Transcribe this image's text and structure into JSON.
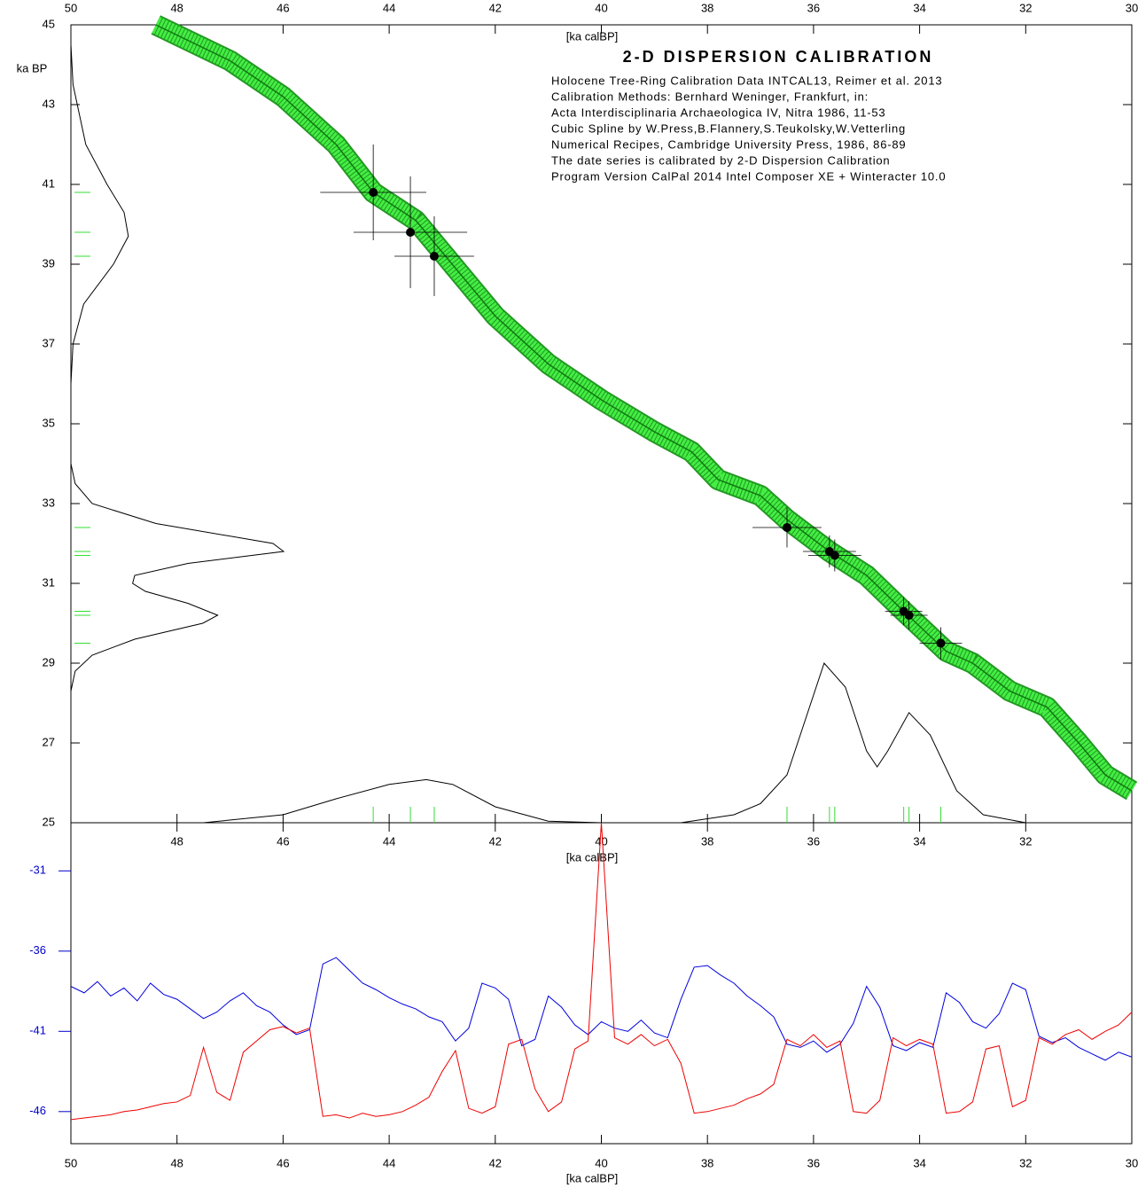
{
  "chart_data": [
    {
      "type": "calibration",
      "title": "2-D DISPERSION CALIBRATION",
      "x_label": "[ka calBP]",
      "y_label": "ka BP",
      "notes": [
        "Holocene Tree-Ring Calibration Data INTCAL13, Reimer et al. 2013",
        "Calibration Methods:  Bernhard Weninger, Frankfurt, in:",
        "Acta Interdisciplinaria Archaeologica IV, Nitra 1986, 11-53",
        "Cubic Spline by W.Press,B.Flannery,S.Teukolsky,W.Vetterling",
        "Numerical Recipes, Cambridge University Press, 1986, 86-89",
        "The date series is calibrated by 2-D Dispersion Calibration",
        "Program Version CalPal 2014 Intel Composer XE + Winteracter 10.0"
      ],
      "xlim": [
        50,
        30
      ],
      "xticks": [
        50,
        48,
        46,
        44,
        42,
        40,
        38,
        36,
        34,
        32,
        30
      ],
      "ylim": [
        25,
        45
      ],
      "yticks": [
        25,
        27,
        29,
        31,
        33,
        35,
        37,
        39,
        41,
        43,
        45
      ],
      "curve": {
        "color": "#44ee44",
        "x": [
          48.4,
          47,
          46,
          45,
          44.3,
          43.5,
          43,
          42,
          41,
          40,
          39,
          38.3,
          37.8,
          37,
          36.5,
          35.7,
          35,
          34.3,
          33.5,
          33,
          32.3,
          31.6,
          31,
          30.5,
          30
        ],
        "y": [
          45,
          44.1,
          43.2,
          42,
          40.8,
          40.1,
          39.3,
          37.7,
          36.5,
          35.6,
          34.8,
          34.3,
          33.6,
          33.2,
          32.6,
          31.8,
          31.2,
          30.3,
          29.3,
          29,
          28.3,
          27.9,
          27,
          26.2,
          25.8
        ]
      },
      "points": {
        "color": "#000000",
        "tick_color": "#33dd33",
        "x": [
          44.3,
          43.6,
          43.15,
          36.5,
          35.7,
          35.6,
          34.3,
          34.2,
          33.6
        ],
        "y": [
          40.8,
          39.8,
          39.2,
          32.4,
          31.8,
          31.7,
          30.3,
          30.2,
          29.5
        ],
        "xerr": [
          1.0,
          1.07,
          0.75,
          0.65,
          0.5,
          0.5,
          0.35,
          0.35,
          0.4
        ],
        "yerr": [
          1.2,
          1.4,
          1.0,
          0.5,
          0.4,
          0.4,
          0.35,
          0.35,
          0.4
        ]
      },
      "bp_density": {
        "color": "#000000",
        "y": [
          44.5,
          43.5,
          42,
          41,
          40.3,
          39.7,
          39,
          38,
          37,
          36,
          34,
          33.5,
          33,
          32.5,
          32,
          31.8,
          31.5,
          31.2,
          31.0,
          30.8,
          30.5,
          30.2,
          30.0,
          29.6,
          29.2,
          28.8,
          28.3
        ],
        "values": [
          0,
          0.01,
          0.07,
          0.17,
          0.25,
          0.27,
          0.2,
          0.06,
          0.01,
          0,
          0,
          0.02,
          0.1,
          0.4,
          0.95,
          1.0,
          0.55,
          0.3,
          0.29,
          0.35,
          0.55,
          0.69,
          0.62,
          0.3,
          0.1,
          0.02,
          0
        ]
      },
      "calbp_density": {
        "color": "#000000",
        "x": [
          47.5,
          46,
          45,
          44,
          43.3,
          42.8,
          42,
          41,
          40,
          38.5,
          37.5,
          37,
          36.5,
          36.2,
          35.8,
          35.4,
          35,
          34.8,
          34.6,
          34.2,
          33.8,
          33.3,
          32.8,
          32,
          31.5
        ],
        "values": [
          0,
          0.05,
          0.15,
          0.24,
          0.27,
          0.24,
          0.1,
          0.01,
          0,
          0,
          0.05,
          0.12,
          0.3,
          0.6,
          1.0,
          0.85,
          0.45,
          0.35,
          0.45,
          0.69,
          0.55,
          0.2,
          0.05,
          0,
          0
        ]
      }
    },
    {
      "type": "line",
      "x_label": "[ka calBP]",
      "xlim": [
        50,
        30
      ],
      "xticks": [
        50,
        48,
        46,
        44,
        42,
        40,
        38,
        36,
        34,
        32,
        30
      ],
      "ylim": [
        -48,
        -28
      ],
      "yticks": [
        -31,
        -36,
        -41,
        -46
      ],
      "tick_color": "#0000cc",
      "x": [
        50,
        49.75,
        49.5,
        49.25,
        49,
        48.75,
        48.5,
        48.25,
        48,
        47.75,
        47.5,
        47.25,
        47,
        46.75,
        46.5,
        46.25,
        46,
        45.75,
        45.5,
        45.25,
        45,
        44.75,
        44.5,
        44.25,
        44,
        43.75,
        43.5,
        43.25,
        43,
        42.75,
        42.5,
        42.25,
        42,
        41.75,
        41.5,
        41.25,
        41,
        40.75,
        40.5,
        40.25,
        40,
        39.75,
        39.5,
        39.25,
        39,
        38.75,
        38.5,
        38.25,
        38,
        37.75,
        37.5,
        37.25,
        37,
        36.75,
        36.5,
        36.25,
        36,
        35.75,
        35.5,
        35.25,
        35,
        34.75,
        34.5,
        34.25,
        34,
        33.75,
        33.5,
        33.25,
        33,
        32.75,
        32.5,
        32.25,
        32,
        31.75,
        31.5,
        31.25,
        31,
        30.75,
        30.5,
        30.25,
        30
      ],
      "series": [
        {
          "color": "#0000dd",
          "values": [
            -38.2,
            -38.6,
            -37.9,
            -38.8,
            -38.3,
            -39.1,
            -38.0,
            -38.7,
            -39.0,
            -39.6,
            -40.2,
            -39.8,
            -39.1,
            -38.6,
            -39.4,
            -39.8,
            -40.6,
            -41.2,
            -40.9,
            -36.8,
            -36.4,
            -37.2,
            -38.0,
            -38.4,
            -38.9,
            -39.3,
            -39.6,
            -40.1,
            -40.4,
            -41.6,
            -40.8,
            -38.0,
            -38.3,
            -39.0,
            -41.9,
            -41.5,
            -38.8,
            -39.5,
            -40.6,
            -41.2,
            -40.4,
            -40.8,
            -41.0,
            -40.3,
            -41.1,
            -41.4,
            -39.0,
            -37.0,
            -36.9,
            -37.5,
            -38.0,
            -38.8,
            -39.4,
            -40.1,
            -41.8,
            -42.0,
            -41.6,
            -42.3,
            -41.8,
            -40.5,
            -38.2,
            -39.5,
            -41.9,
            -42.2,
            -41.7,
            -42.0,
            -38.6,
            -39.2,
            -40.4,
            -40.8,
            -39.9,
            -38.0,
            -38.4,
            -41.3,
            -41.7,
            -41.4,
            -42.0,
            -42.4,
            -42.8,
            -42.3,
            -42.6
          ]
        },
        {
          "color": "#ee0000",
          "values": [
            -46.5,
            -46.4,
            -46.3,
            -46.2,
            -46.0,
            -45.9,
            -45.7,
            -45.5,
            -45.4,
            -45.0,
            -42.0,
            -44.8,
            -45.3,
            -42.3,
            -41.6,
            -40.9,
            -40.7,
            -41.1,
            -40.8,
            -46.3,
            -46.2,
            -46.4,
            -46.1,
            -46.3,
            -46.2,
            -46.0,
            -45.6,
            -45.1,
            -43.5,
            -42.2,
            -45.8,
            -46.1,
            -45.7,
            -41.8,
            -41.5,
            -44.6,
            -46.0,
            -45.4,
            -42.1,
            -41.6,
            -28.0,
            -41.4,
            -41.8,
            -41.2,
            -41.9,
            -41.5,
            -43.0,
            -46.1,
            -46.0,
            -45.8,
            -45.6,
            -45.2,
            -44.9,
            -44.3,
            -41.5,
            -41.9,
            -41.2,
            -42.0,
            -41.6,
            -46.0,
            -46.1,
            -45.3,
            -41.4,
            -41.9,
            -41.5,
            -41.8,
            -46.1,
            -46.0,
            -45.4,
            -42.1,
            -41.9,
            -45.7,
            -45.3,
            -41.4,
            -41.8,
            -41.2,
            -40.9,
            -41.5,
            -41.0,
            -40.6,
            -39.8
          ]
        }
      ]
    }
  ]
}
